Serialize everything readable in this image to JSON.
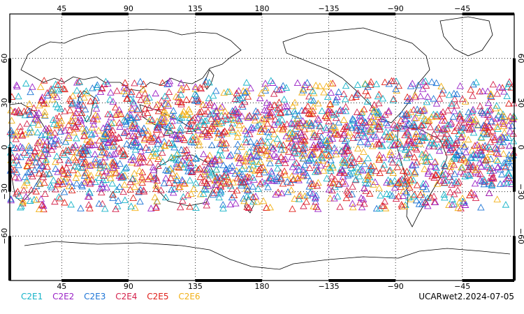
{
  "map": {
    "projection": "equirectangular",
    "center_longitude": 180,
    "lon_range": [
      10,
      350
    ],
    "lat_range": [
      -90,
      90
    ],
    "gridline_style": "dotted",
    "top_lon_labels": [
      "45",
      "90",
      "135",
      "180",
      "−135",
      "−90",
      "−45"
    ],
    "bottom_lon_labels": [
      "45",
      "90",
      "135",
      "180",
      "−135",
      "−90",
      "−45"
    ],
    "lon_ticks_deg": [
      45,
      90,
      135,
      180,
      225,
      270,
      315
    ],
    "lat_labels": [
      "60",
      "30",
      "0",
      "−30",
      "−60"
    ],
    "lat_ticks_deg": [
      60,
      30,
      0,
      -30,
      -60
    ],
    "land_outline_color": "#000000",
    "marker_symbol": "triangle-outline",
    "observation_latitude_band": [
      -42,
      45
    ]
  },
  "legend": {
    "items": [
      {
        "label": "C2E1",
        "color": "#16b3c8"
      },
      {
        "label": "C2E2",
        "color": "#9a22c6"
      },
      {
        "label": "C2E3",
        "color": "#1c74d6"
      },
      {
        "label": "C2E4",
        "color": "#d4224c"
      },
      {
        "label": "C2E5",
        "color": "#e0201a"
      },
      {
        "label": "C2E6",
        "color": "#f2b117"
      }
    ]
  },
  "source_label": "UCARwet2.2024-07-05"
}
